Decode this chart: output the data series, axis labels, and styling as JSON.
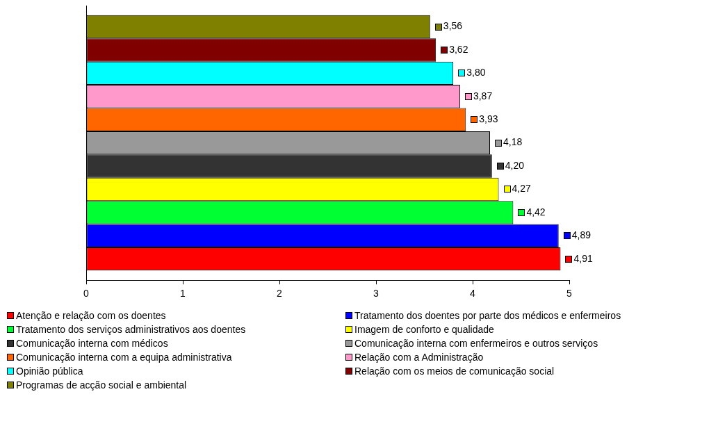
{
  "chart_data": {
    "type": "bar",
    "orientation": "horizontal",
    "categories": [
      null
    ],
    "xlim": [
      0,
      5
    ],
    "xticks": [
      0,
      1,
      2,
      3,
      4,
      5
    ],
    "grid": false,
    "tick_labels": "x",
    "legend": "bottom",
    "series": [
      {
        "name": "Atenção e relação com os doentes",
        "color": "#ff0000",
        "values": [
          4.91
        ],
        "value_labels": [
          "4,91"
        ]
      },
      {
        "name": "Tratamento dos doentes por parte dos médicos e enfermeiros",
        "color": "#0000ff",
        "values": [
          4.89
        ],
        "value_labels": [
          "4,89"
        ]
      },
      {
        "name": "Tratamento dos serviços administrativos aos doentes",
        "color": "#00ff33",
        "values": [
          4.42
        ],
        "value_labels": [
          "4,42"
        ]
      },
      {
        "name": "Imagem de conforto e qualidade",
        "color": "#ffff00",
        "values": [
          4.27
        ],
        "value_labels": [
          "4,27"
        ]
      },
      {
        "name": "Comunicação interna com médicos",
        "color": "#333333",
        "values": [
          4.2
        ],
        "value_labels": [
          "4,20"
        ]
      },
      {
        "name": "Comunicação interna com enfermeiros e outros serviços",
        "color": "#999999",
        "values": [
          4.18
        ],
        "value_labels": [
          "4,18"
        ]
      },
      {
        "name": "Comunicação interna com a equipa administrativa",
        "color": "#ff6600",
        "values": [
          3.93
        ],
        "value_labels": [
          "3,93"
        ]
      },
      {
        "name": "Relação com a Administração",
        "color": "#ff99cc",
        "values": [
          3.87
        ],
        "value_labels": [
          "3,87"
        ]
      },
      {
        "name": "Opinião pública",
        "color": "#00ffff",
        "values": [
          3.8
        ],
        "value_labels": [
          "3,80"
        ]
      },
      {
        "name": "Relação com os meios de comunicação social",
        "color": "#800000",
        "values": [
          3.62
        ],
        "value_labels": [
          "3,62"
        ]
      },
      {
        "name": "Programas de acção social e ambiental",
        "color": "#808000",
        "values": [
          3.56
        ],
        "value_labels": [
          "3,56"
        ]
      }
    ]
  }
}
